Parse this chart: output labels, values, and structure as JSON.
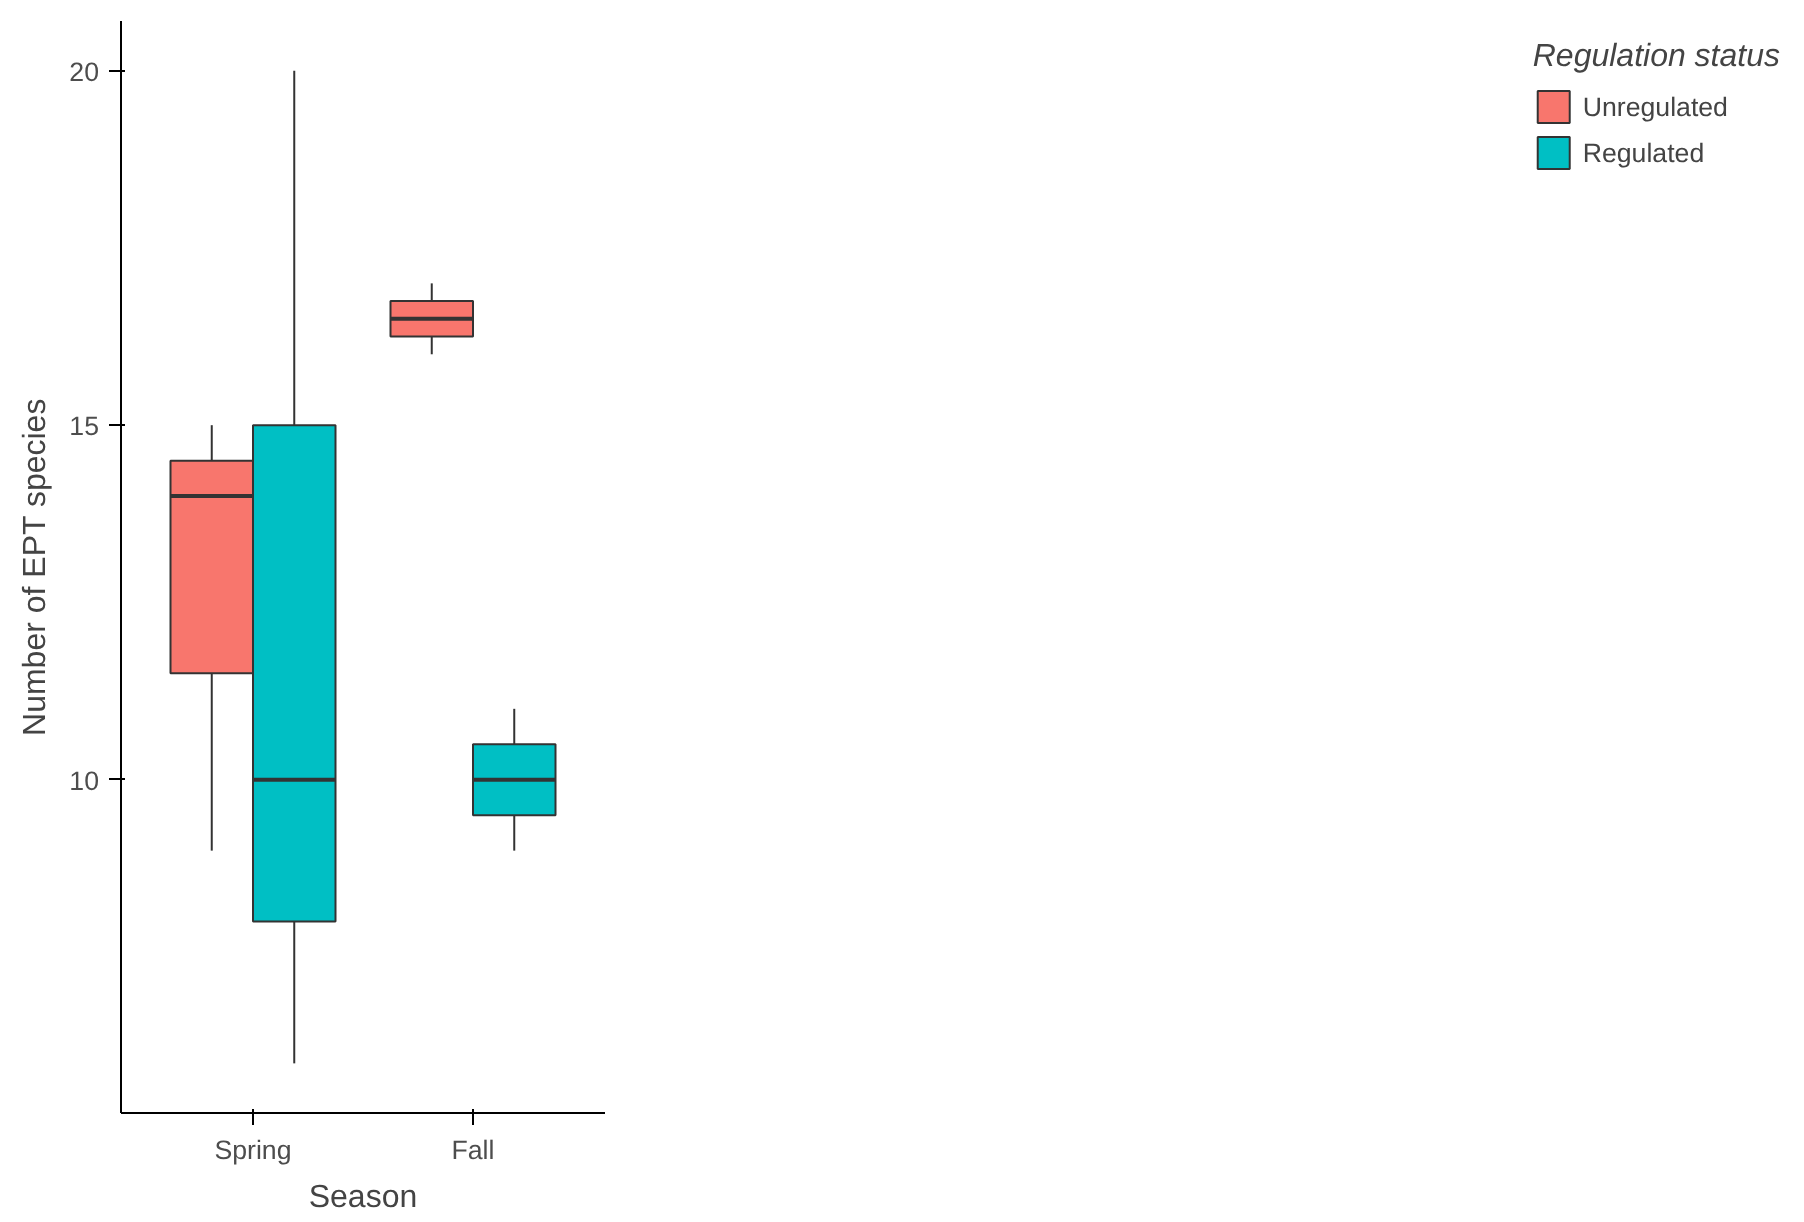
{
  "chart_data": {
    "type": "box",
    "xlabel": "Season",
    "ylabel": "Number of EPT species",
    "legend_title": "Regulation status",
    "categories": [
      "Spring",
      "Fall"
    ],
    "ylim": [
      5.3,
      20.7
    ],
    "yticks": [
      10,
      15,
      20
    ],
    "grid": false,
    "legend": "right",
    "series": [
      {
        "name": "Unregulated",
        "color": "#f8766d",
        "boxes": [
          {
            "low": 9,
            "q1": 11.5,
            "median": 14,
            "q3": 14.5,
            "high": 15
          },
          {
            "low": 16,
            "q1": 16.25,
            "median": 16.5,
            "q3": 16.75,
            "high": 17
          }
        ]
      },
      {
        "name": "Regulated",
        "color": "#00bfc4",
        "boxes": [
          {
            "low": 6,
            "q1": 8,
            "median": 10,
            "q3": 15,
            "high": 20
          },
          {
            "low": 9,
            "q1": 9.5,
            "median": 10,
            "q3": 10.5,
            "high": 11
          }
        ]
      }
    ]
  }
}
